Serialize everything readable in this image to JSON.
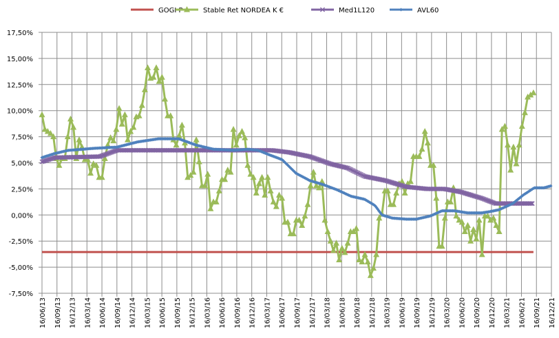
{
  "chart_data": {
    "type": "line",
    "title": "",
    "xlabel": "",
    "ylabel": "",
    "ylim": [
      -7.5,
      17.5
    ],
    "y_ticks": [
      "17,50%",
      "15,00%",
      "12,50%",
      "10,00%",
      "7,50%",
      "5,00%",
      "2,50%",
      "0,00%",
      "-2,50%",
      "-5,00%",
      "-7,50%"
    ],
    "y_tick_values": [
      17.5,
      15,
      12.5,
      10,
      7.5,
      5,
      2.5,
      0,
      -2.5,
      -5,
      -7.5
    ],
    "x_ticks": [
      "16/06/13",
      "16/09/13",
      "16/12/13",
      "16/03/14",
      "16/06/14",
      "16/09/14",
      "16/12/14",
      "16/03/15",
      "16/06/15",
      "16/09/15",
      "16/12/15",
      "16/03/16",
      "16/06/16",
      "16/09/16",
      "16/12/16",
      "16/03/17",
      "16/06/17",
      "16/09/17",
      "16/12/17",
      "16/03/18",
      "16/06/18",
      "16/09/18",
      "16/12/18",
      "16/03/19",
      "16/06/19",
      "16/09/19",
      "16/12/19",
      "16/03/20",
      "16/06/20",
      "16/09/20",
      "16/12/20",
      "16/03/21",
      "16/06/21",
      "16/09/21",
      "16/12/21"
    ],
    "x_unit": "quarter index from 16/06/13",
    "grid": true,
    "legend_placement": "top",
    "series": [
      {
        "name": "GOGI P",
        "color": "#C0504D",
        "marker": "none",
        "points": [
          [
            0,
            -3.55
          ],
          [
            32.8,
            -3.55
          ]
        ]
      },
      {
        "name": "Stable Ret NORDEA K €",
        "color": "#9BBB59",
        "marker": "triangle",
        "x_range": [
          0,
          32.8
        ],
        "values": [
          9.6,
          8.2,
          8.0,
          7.8,
          7.5,
          5.4,
          4.75,
          5.4,
          5.4,
          7.5,
          9.2,
          8.4,
          5.4,
          7.2,
          6.5,
          5.3,
          5.3,
          4.0,
          4.9,
          4.75,
          3.6,
          3.6,
          5.4,
          6.7,
          7.4,
          7.1,
          8.2,
          10.2,
          8.7,
          9.6,
          7.2,
          8.0,
          8.4,
          9.4,
          9.5,
          10.5,
          12.0,
          14.1,
          13.1,
          13.2,
          14.1,
          12.8,
          13.2,
          11.1,
          9.5,
          9.5,
          7.2,
          6.7,
          7.6,
          8.6,
          6.9,
          3.6,
          3.8,
          4.1,
          7.2,
          5.1,
          2.8,
          2.8,
          3.9,
          0.6,
          1.25,
          1.25,
          2.3,
          3.4,
          3.4,
          4.3,
          4.1,
          8.2,
          6.7,
          7.6,
          8.0,
          7.4,
          4.75,
          3.9,
          3.6,
          2.1,
          3.0,
          3.6,
          1.9,
          3.6,
          2.3,
          1.25,
          0.8,
          1.9,
          1.6,
          -0.7,
          -0.7,
          -1.8,
          -1.8,
          -0.5,
          -0.5,
          -1.0,
          -0.1,
          1.0,
          2.8,
          4.1,
          2.8,
          2.6,
          3.2,
          -0.5,
          -1.6,
          -2.5,
          -3.4,
          -2.7,
          -4.3,
          -3.2,
          -3.6,
          -2.7,
          -1.6,
          -1.6,
          -1.3,
          -4.3,
          -4.5,
          -3.8,
          -4.5,
          -5.8,
          -5.1,
          -3.8,
          -0.3,
          0.1,
          2.3,
          2.3,
          1.0,
          1.0,
          2.1,
          3.0,
          3.2,
          2.1,
          3.0,
          3.2,
          5.6,
          5.6,
          5.6,
          6.3,
          8.0,
          6.9,
          4.75,
          4.75,
          1.6,
          -3.0,
          -3.0,
          -0.3,
          1.25,
          1.25,
          2.6,
          -0.1,
          -0.5,
          -0.7,
          -1.6,
          -1.0,
          -2.5,
          -1.4,
          -2.3,
          -0.5,
          -3.8,
          -0.1,
          -0.1,
          -0.5,
          -0.3,
          -1.0,
          -1.6,
          8.2,
          8.5,
          6.7,
          4.3,
          6.5,
          4.9,
          6.7,
          8.5,
          9.8,
          11.3,
          11.5,
          11.7
        ]
      },
      {
        "name": "Med1L120",
        "color": "#8064A2",
        "marker": "x",
        "points": [
          [
            0,
            5.1
          ],
          [
            0.87,
            5.5
          ],
          [
            3.86,
            5.6
          ],
          [
            5.0,
            6.2
          ],
          [
            15.34,
            6.2
          ],
          [
            16.5,
            6.0
          ],
          [
            17.87,
            5.6
          ],
          [
            19.25,
            4.9
          ],
          [
            20.4,
            4.5
          ],
          [
            21.54,
            3.7
          ],
          [
            22.92,
            3.3
          ],
          [
            24.3,
            2.7
          ],
          [
            25.68,
            2.5
          ],
          [
            26.83,
            2.5
          ],
          [
            27.97,
            2.2
          ],
          [
            29.35,
            1.6
          ],
          [
            30.27,
            1.1
          ],
          [
            32.8,
            1.1
          ]
        ]
      },
      {
        "name": "AVL60",
        "color": "#4F81BD",
        "marker": "diamond",
        "points": [
          [
            0,
            5.5
          ],
          [
            0.87,
            5.9
          ],
          [
            1.79,
            6.2
          ],
          [
            3.63,
            6.4
          ],
          [
            5.0,
            6.5
          ],
          [
            6.38,
            7.0
          ],
          [
            7.76,
            7.3
          ],
          [
            9.13,
            7.3
          ],
          [
            10.28,
            6.7
          ],
          [
            11.44,
            6.3
          ],
          [
            12.82,
            6.2
          ],
          [
            13.74,
            6.3
          ],
          [
            14.43,
            6.2
          ],
          [
            15.11,
            5.8
          ],
          [
            16.03,
            5.3
          ],
          [
            16.95,
            4.0
          ],
          [
            17.87,
            3.3
          ],
          [
            18.79,
            2.9
          ],
          [
            19.71,
            2.4
          ],
          [
            20.62,
            1.8
          ],
          [
            21.54,
            1.5
          ],
          [
            22.23,
            0.9
          ],
          [
            22.69,
            0.0
          ],
          [
            23.38,
            -0.3
          ],
          [
            24.3,
            -0.4
          ],
          [
            24.99,
            -0.4
          ],
          [
            25.91,
            -0.1
          ],
          [
            26.69,
            0.4
          ],
          [
            27.51,
            0.4
          ],
          [
            28.43,
            0.2
          ],
          [
            29.35,
            0.2
          ],
          [
            29.81,
            0.3
          ],
          [
            30.5,
            0.5
          ],
          [
            31.42,
            1.1
          ],
          [
            32.11,
            1.9
          ],
          [
            32.85,
            2.6
          ],
          [
            33.49,
            2.6
          ],
          [
            34,
            2.8
          ]
        ]
      }
    ]
  }
}
